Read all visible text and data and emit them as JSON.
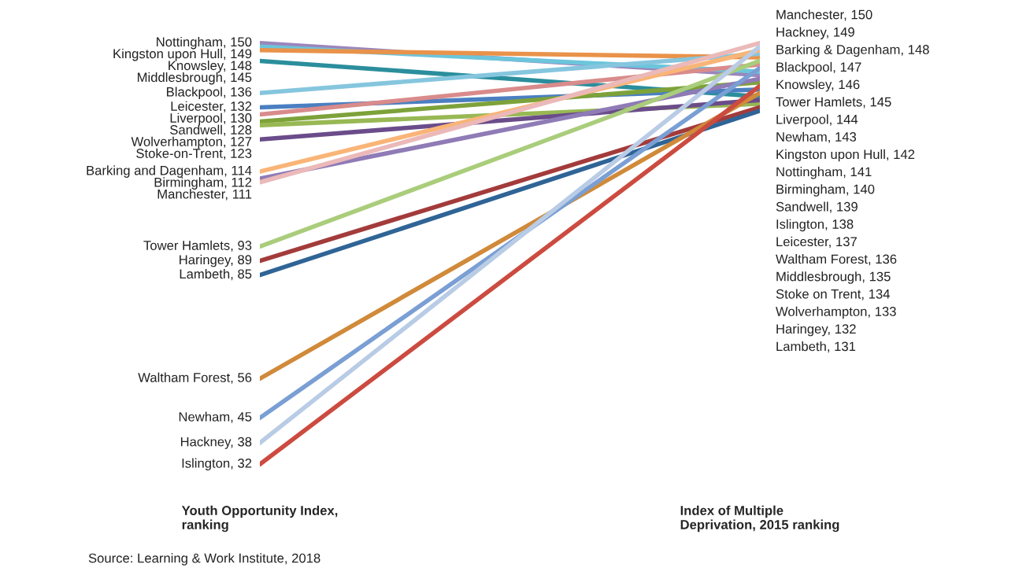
{
  "chart_data": {
    "type": "line",
    "categories": [
      "Youth Opportunity Index,\nranking",
      "Index of Multiple\nDeprivation, 2015 ranking"
    ],
    "tick_labels": "x",
    "grid": false,
    "legend": false,
    "marker": "none",
    "line_style": "solid",
    "series": [
      {
        "color": "#9a86bd",
        "values": [
          150,
          141
        ],
        "value_labels": [
          "Nottingham, 150",
          null
        ]
      },
      {
        "color": "#6cc5db",
        "values": [
          149,
          142
        ],
        "value_labels": [
          "Kingston upon Hull, 149",
          null
        ]
      },
      {
        "color": "#e9924a",
        "values": [
          148,
          146
        ],
        "value_labels": [
          "Knowsley, 148",
          null
        ]
      },
      {
        "color": "#2b8e9c",
        "values": [
          145,
          135
        ],
        "value_labels": [
          "Middlesbrough, 145",
          null
        ]
      },
      {
        "color": "#85c6de",
        "values": [
          136,
          147
        ],
        "value_labels": [
          "Blackpool, 136",
          null
        ]
      },
      {
        "color": "#4a7fc1",
        "values": [
          132,
          137
        ],
        "value_labels": [
          "Leicester, 132",
          null
        ]
      },
      {
        "color": "#d98b8b",
        "values": [
          130,
          144
        ],
        "value_labels": [
          "Liverpool, 130",
          null
        ]
      },
      {
        "color": "#7da23a",
        "values": [
          128,
          139
        ],
        "value_labels": [
          "Sandwell, 128",
          null
        ]
      },
      {
        "color": "#98b854",
        "values": [
          127,
          133
        ],
        "value_labels": [
          "Wolverhampton, 127",
          null
        ]
      },
      {
        "color": "#6b4c8a",
        "values": [
          123,
          134
        ],
        "value_labels": [
          "Stoke-on-Trent, 123",
          null
        ]
      },
      {
        "color": "#f9b577",
        "values": [
          114,
          148
        ],
        "value_labels": [
          "Barking and Dagenham, 114",
          null
        ]
      },
      {
        "color": "#8f7bb6",
        "values": [
          112,
          140
        ],
        "value_labels": [
          "Birmingham, 112",
          null
        ]
      },
      {
        "color": "#ebb9b9",
        "values": [
          111,
          150
        ],
        "value_labels": [
          "Manchester, 111",
          null
        ]
      },
      {
        "color": "#aacd7b",
        "values": [
          93,
          145
        ],
        "value_labels": [
          "Tower Hamlets, 93",
          null
        ]
      },
      {
        "color": "#a33b3b",
        "values": [
          89,
          132
        ],
        "value_labels": [
          "Haringey, 89",
          null
        ]
      },
      {
        "color": "#2f6496",
        "values": [
          85,
          131
        ],
        "value_labels": [
          "Lambeth, 85",
          null
        ]
      },
      {
        "color": "#d08a3a",
        "values": [
          56,
          136
        ],
        "value_labels": [
          "Waltham Forest, 56",
          null
        ]
      },
      {
        "color": "#7a9fd4",
        "values": [
          45,
          143
        ],
        "value_labels": [
          "Newham, 45",
          null
        ]
      },
      {
        "color": "#b9cce6",
        "values": [
          38,
          149
        ],
        "value_labels": [
          "Hackney, 38",
          null
        ]
      },
      {
        "color": "#cc4b40",
        "values": [
          32,
          138
        ],
        "value_labels": [
          "Islington, 32",
          null
        ]
      }
    ],
    "annotations": [
      "Manchester, 150",
      "Hackney, 149",
      "Barking & Dagenham, 148",
      "Blackpool, 147",
      "Knowsley, 146",
      "Tower Hamlets, 145",
      "Liverpool, 144",
      "Newham, 143",
      "Kingston upon Hull, 142",
      "Nottingham, 141",
      "Birmingham, 140",
      "Sandwell, 139",
      "Islington, 138",
      "Leicester, 137",
      "Waltham Forest, 136",
      "Middlesbrough, 135",
      "Stoke on Trent, 134",
      "Wolverhampton, 133",
      "Haringey, 132",
      "Lambeth, 131",
      {
        "text": "Source: Learning & Work Institute, 2018"
      }
    ]
  }
}
